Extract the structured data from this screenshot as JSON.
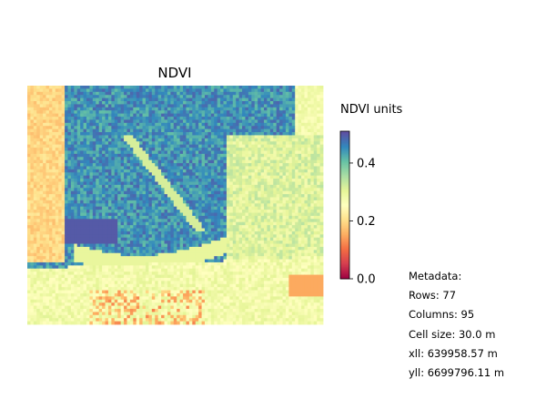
{
  "chart_data": {
    "type": "heatmap",
    "title": "NDVI",
    "colorbar": {
      "label": "NDVI units",
      "colormap": "Spectral",
      "vmin": 0.0,
      "vmax": 0.51,
      "ticks": [
        0.0,
        0.2,
        0.4
      ],
      "tick_labels": [
        "0.0",
        "0.2",
        "0.4"
      ]
    },
    "grid": {
      "rows": 77,
      "columns": 95,
      "regions_note": "raster of NDVI values: high (~0.4-0.5) in central-north forest, low (~0.05-0.2) at left margin and bottom, mid (~0.25-0.3) in remaining field areas",
      "typical_values": {
        "high": 0.45,
        "medium": 0.28,
        "low": 0.12
      }
    }
  },
  "metadata": {
    "heading": "Metadata:",
    "rows": "Rows: 77",
    "columns": "Columns: 95",
    "cell_size": "Cell size: 30.0 m",
    "xll": "xll: 639958.57 m",
    "yll": "yll: 6699796.11 m"
  },
  "colors": {
    "spectral": [
      "#9e0142",
      "#d53e4f",
      "#f46d43",
      "#fdae61",
      "#fee08b",
      "#ffffbf",
      "#e6f598",
      "#abdda4",
      "#66c2a5",
      "#3288bd",
      "#5e4fa2"
    ]
  }
}
